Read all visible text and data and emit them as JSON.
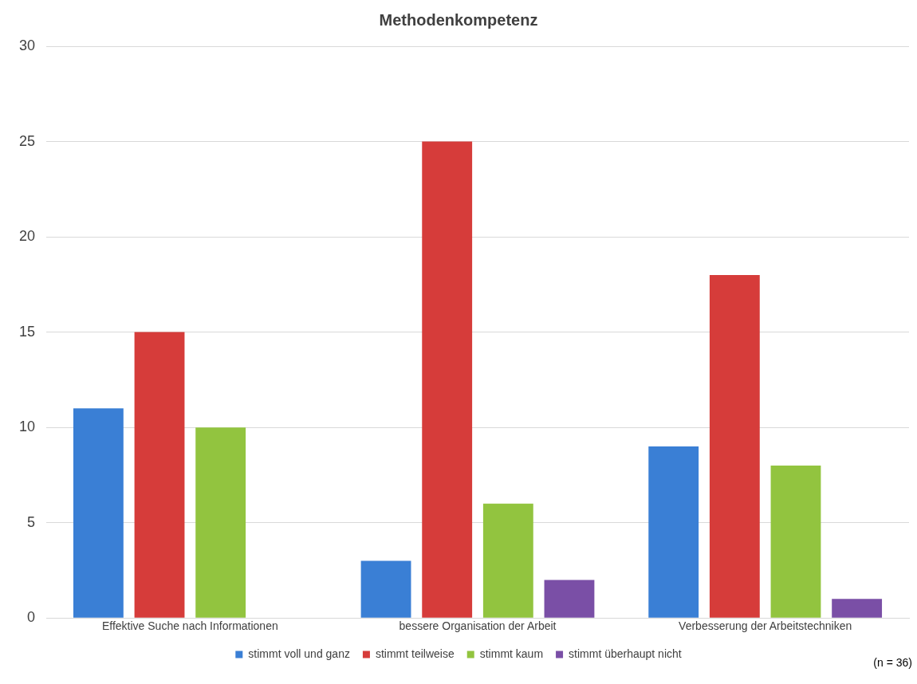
{
  "chart_data": {
    "type": "bar",
    "title": "Methodenkompetenz",
    "categories": [
      "Effektive Suche nach Informationen",
      "bessere Organisation der Arbeit",
      "Verbesserung der Arbeitstechniken"
    ],
    "series": [
      {
        "name": "stimmt voll und ganz",
        "color": "#3a7fd5",
        "values": [
          11,
          3,
          9
        ]
      },
      {
        "name": "stimmt teilweise",
        "color": "#d63c3a",
        "values": [
          15,
          25,
          18
        ]
      },
      {
        "name": "stimmt kaum",
        "color": "#92c43f",
        "values": [
          10,
          6,
          8
        ]
      },
      {
        "name": "stimmt überhaupt nicht",
        "color": "#7a4fa6",
        "values": [
          0,
          2,
          1
        ]
      }
    ],
    "ylim": [
      0,
      30
    ],
    "yticks": [
      0,
      5,
      10,
      15,
      20,
      25,
      30
    ],
    "grid": "y",
    "legend": "bottom",
    "annotations": [
      "(n = 36)"
    ]
  }
}
